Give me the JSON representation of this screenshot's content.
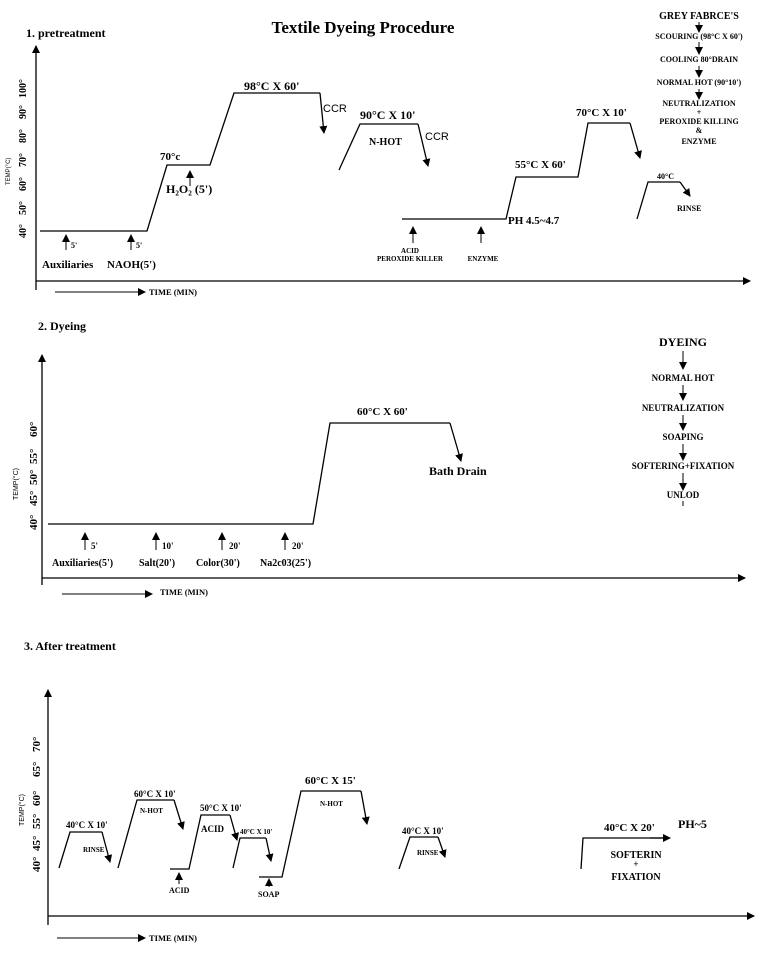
{
  "title": "Textile Dyeing  Procedure",
  "section1": {
    "heading": "1. pretreatment",
    "y_axis_label": "TEMP(°C)",
    "y_ticks": [
      "40°",
      "50°",
      "60°",
      "70°",
      "80°",
      "90°",
      "100°"
    ],
    "x_axis_label": "TIME (MIN)",
    "labels": {
      "temp70": "70°c",
      "h2o2": "H₂O₂ (5')",
      "s98": "98°C X 60'",
      "ccr1": "CCR",
      "s90": "90°C X 10'",
      "nhot": "N-HOT",
      "ccr2": "CCR",
      "s55": "55°C X 60'",
      "s70": "70°C X 10'",
      "ph": "PH 4.5~4.7",
      "aux_time": "5'",
      "aux": "Auxiliaries",
      "naoh_time": "5'",
      "naoh": "NAOH(5')",
      "acid": "ACID",
      "perox": "PEROXIDE KILLER",
      "enzyme": "ENZYME",
      "s40": "40°C",
      "rinse": "RINSE"
    },
    "flow": [
      "GREY FABRCE'S",
      "SCOURING (98°C X 60')",
      "COOLING 80°DRAIN",
      "NORMAL HOT (90°10')",
      "NEUTRALIZATION",
      "+",
      "PEROXIDE KILLING",
      "&",
      "ENZYME"
    ]
  },
  "section2": {
    "heading": "2. Dyeing",
    "y_axis_label": "TEMP(°C)",
    "y_ticks": [
      "40°",
      "45°",
      "50°",
      "55°",
      "60°"
    ],
    "x_axis_label": "TIME (MIN)",
    "labels": {
      "s60": "60°C X 60'",
      "drain": "Bath Drain",
      "t1": "5'",
      "aux": "Auxiliaries(5')",
      "t2": "10'",
      "salt": "Salt(20')",
      "t3": "20'",
      "color": "Color(30')",
      "t4": "20'",
      "soda": "Na2c03(25')"
    },
    "flow": [
      "DYEING",
      "NORMAL HOT",
      "NEUTRALIZATION",
      "SOAPING",
      "SOFTERING+FIXATION",
      "UNLOD"
    ]
  },
  "section3": {
    "heading": "3. After treatment",
    "y_axis_label": "TEMP(°C)",
    "y_ticks": [
      "40°",
      "45°",
      "55°",
      "60°",
      "65°",
      "70°"
    ],
    "x_axis_label": "TIME (MIN)",
    "labels": {
      "r1": "40°C X 10'",
      "rinse1": "RINSE",
      "n1": "60°C X 10'",
      "nhot1": "N-HOT",
      "a1": "50°C X 10'",
      "acid_top": "ACID",
      "acid_bot": "ACID",
      "sp": "40°C X 10'",
      "soap": "SOAP",
      "n2": "60°C X 15'",
      "nhot2": "N-HOT",
      "r2": "40°C X 10'",
      "rinse2": "RINSE",
      "f1": "40°C X 20'",
      "soft": "SOFTERIN",
      "plus": "+",
      "fix": "FIXATION",
      "ph": "PH~5"
    }
  }
}
